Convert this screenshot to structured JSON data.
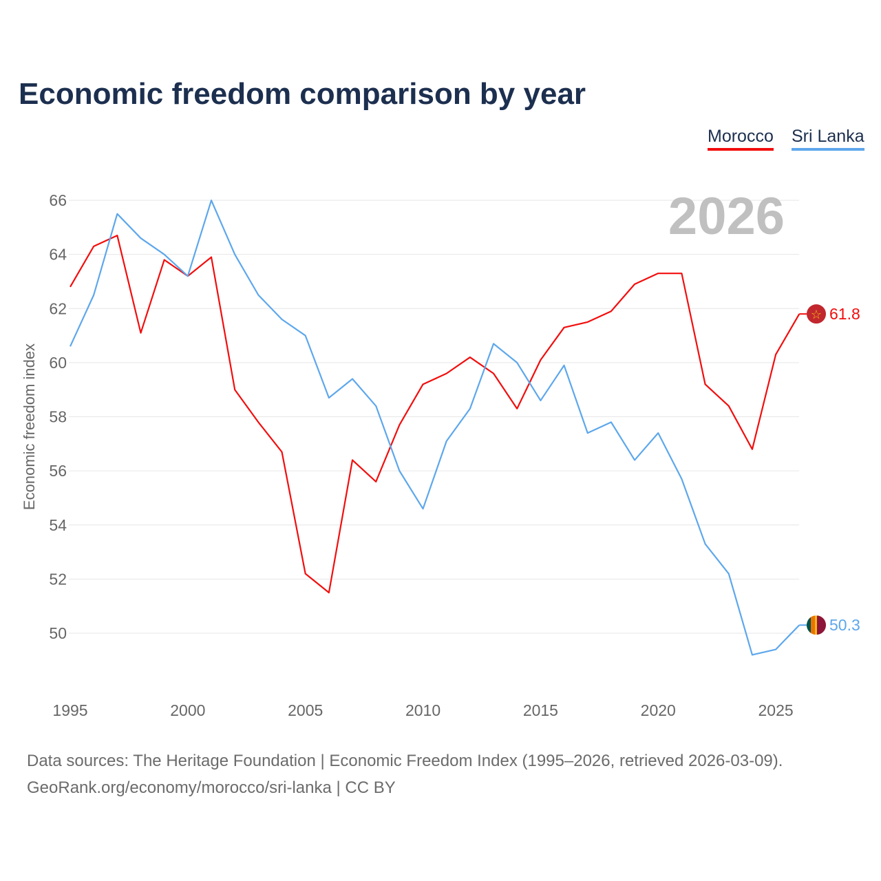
{
  "chart_data": {
    "type": "line",
    "title": "Economic freedom comparison by year",
    "xlabel": "",
    "ylabel": "Economic freedom index",
    "year_watermark": "2026",
    "x": [
      1995,
      1996,
      1997,
      1998,
      1999,
      2000,
      2001,
      2002,
      2003,
      2004,
      2005,
      2006,
      2007,
      2008,
      2009,
      2010,
      2011,
      2012,
      2013,
      2014,
      2015,
      2016,
      2017,
      2018,
      2019,
      2020,
      2021,
      2022,
      2023,
      2024,
      2025,
      2026
    ],
    "xticks": [
      1995,
      2000,
      2005,
      2010,
      2015,
      2020,
      2025
    ],
    "yticks": [
      50,
      52,
      54,
      56,
      58,
      60,
      62,
      64,
      66
    ],
    "ylim": [
      48,
      66
    ],
    "grid": true,
    "legend_position": "top-right",
    "series": [
      {
        "name": "Morocco",
        "color": "#f20d0d",
        "end_label": "61.8",
        "values": [
          62.8,
          64.3,
          64.7,
          61.1,
          63.8,
          63.2,
          63.9,
          59.0,
          57.8,
          56.7,
          52.2,
          51.5,
          56.4,
          55.6,
          57.7,
          59.2,
          59.6,
          60.2,
          59.6,
          58.3,
          60.1,
          61.3,
          61.5,
          61.9,
          62.9,
          63.3,
          63.3,
          59.2,
          58.4,
          56.8,
          60.3,
          61.8
        ]
      },
      {
        "name": "Sri Lanka",
        "color": "#5da7ec",
        "end_label": "50.3",
        "values": [
          60.6,
          62.5,
          65.5,
          64.6,
          64.0,
          63.2,
          66.0,
          64.0,
          62.5,
          61.6,
          61.0,
          58.7,
          59.4,
          58.4,
          56.0,
          54.6,
          57.1,
          58.3,
          60.7,
          60.0,
          58.6,
          59.9,
          57.4,
          57.8,
          56.4,
          57.4,
          55.7,
          53.3,
          52.2,
          49.2,
          49.4,
          50.3
        ]
      }
    ]
  },
  "source_line1": "Data sources: The Heritage Foundation | Economic Freedom Index (1995–2026, retrieved 2026-03-09).",
  "source_line2": "GeoRank.org/economy/morocco/sri-lanka | CC BY"
}
